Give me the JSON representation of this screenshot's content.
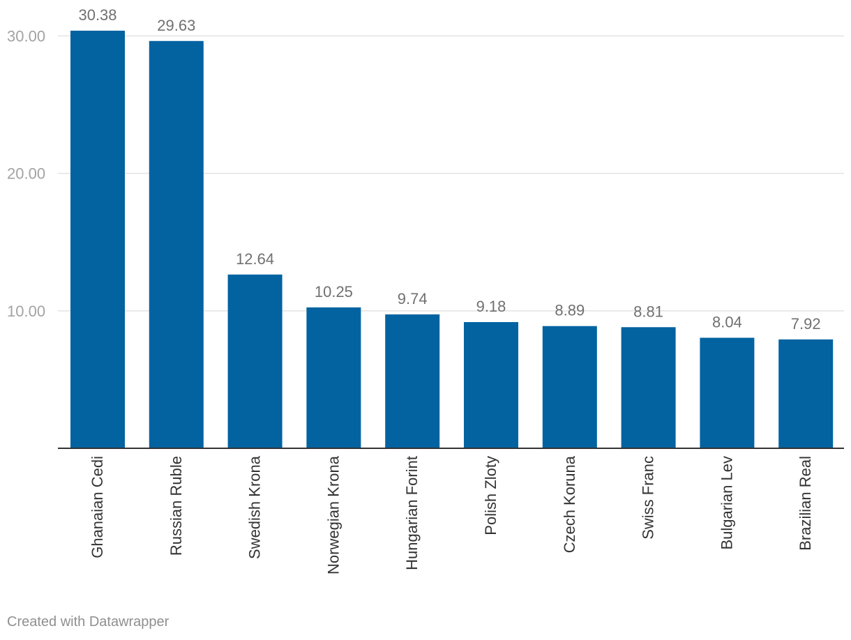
{
  "chart_data": {
    "type": "bar",
    "categories": [
      "Ghanaian Cedi",
      "Russian Ruble",
      "Swedish Krona",
      "Norwegian Krona",
      "Hungarian Forint",
      "Polish Zloty",
      "Czech Koruna",
      "Swiss Franc",
      "Bulgarian Lev",
      "Brazilian Real"
    ],
    "values": [
      30.38,
      29.63,
      12.64,
      10.25,
      9.74,
      9.18,
      8.89,
      8.81,
      8.04,
      7.92
    ],
    "value_labels": [
      "30.38",
      "29.63",
      "12.64",
      "10.25",
      "9.74",
      "9.18",
      "8.89",
      "8.81",
      "8.04",
      "7.92"
    ],
    "y_ticks": [
      10,
      20,
      30
    ],
    "y_tick_labels": [
      "10.00",
      "20.00",
      "30.00"
    ],
    "ylim": [
      0,
      30.38
    ],
    "grid": true,
    "orientation": "vertical",
    "bar_color": "#0363a1",
    "title": "",
    "xlabel": "",
    "ylabel": ""
  },
  "credit": "Created with Datawrapper"
}
